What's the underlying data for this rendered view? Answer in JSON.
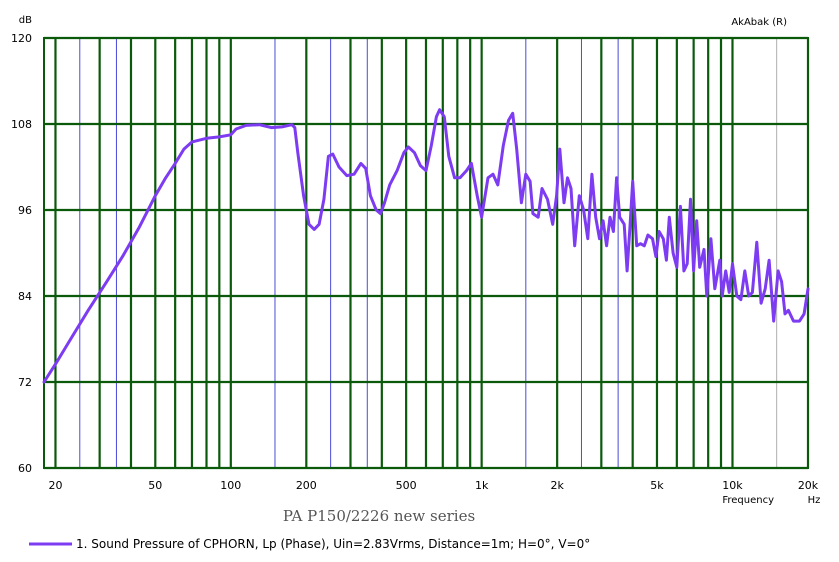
{
  "chart_data": {
    "type": "line",
    "title": "PA P150/2226 new series",
    "brand": "AkAbak (R)",
    "ylabel": "dB",
    "xlabel_line1": "Frequency",
    "xlabel_line2": "Hz",
    "x_scale": "log",
    "xlim": [
      18,
      20000
    ],
    "ylim": [
      60,
      120
    ],
    "y_ticks": [
      {
        "value": 60,
        "label": "60"
      },
      {
        "value": 72,
        "label": "72"
      },
      {
        "value": 84,
        "label": "84"
      },
      {
        "value": 96,
        "label": "96"
      },
      {
        "value": 108,
        "label": "108"
      },
      {
        "value": 120,
        "label": "120"
      }
    ],
    "x_ticks": [
      {
        "value": 20,
        "label": "20"
      },
      {
        "value": 50,
        "label": "50"
      },
      {
        "value": 100,
        "label": "100"
      },
      {
        "value": 200,
        "label": "200"
      },
      {
        "value": 500,
        "label": "500"
      },
      {
        "value": 1000,
        "label": "1k"
      },
      {
        "value": 2000,
        "label": "2k"
      },
      {
        "value": 5000,
        "label": "5k"
      },
      {
        "value": 10000,
        "label": "10k"
      },
      {
        "value": 20000,
        "label": "20k"
      }
    ],
    "colors": {
      "line": "#7d3cf2",
      "major_grid": "#0b5a0b",
      "minor_grid": "#4a4ad8",
      "minor_grid_light": "#b0b0b0"
    },
    "series": [
      {
        "name": "1. Sound Pressure of CPHORN, Lp (Phase), Uin=2.83Vrms, Distance=1m; H=0°, V=0°",
        "points": [
          [
            18,
            72
          ],
          [
            20,
            74.5
          ],
          [
            23,
            78
          ],
          [
            27,
            82
          ],
          [
            32,
            86
          ],
          [
            37,
            89.5
          ],
          [
            43,
            93.5
          ],
          [
            50,
            98
          ],
          [
            55,
            100.5
          ],
          [
            60,
            102.5
          ],
          [
            65,
            104.5
          ],
          [
            70,
            105.5
          ],
          [
            80,
            106
          ],
          [
            90,
            106.2
          ],
          [
            100,
            106.5
          ],
          [
            105,
            107.3
          ],
          [
            115,
            107.8
          ],
          [
            130,
            107.9
          ],
          [
            145,
            107.5
          ],
          [
            160,
            107.6
          ],
          [
            175,
            107.9
          ],
          [
            180,
            107.5
          ],
          [
            185,
            104
          ],
          [
            195,
            98
          ],
          [
            205,
            94
          ],
          [
            215,
            93.3
          ],
          [
            225,
            94
          ],
          [
            235,
            97.5
          ],
          [
            245,
            103.5
          ],
          [
            255,
            103.8
          ],
          [
            270,
            102
          ],
          [
            290,
            100.8
          ],
          [
            310,
            101
          ],
          [
            330,
            102.5
          ],
          [
            345,
            101.8
          ],
          [
            360,
            98
          ],
          [
            380,
            96
          ],
          [
            395,
            95.5
          ],
          [
            410,
            97
          ],
          [
            430,
            99.5
          ],
          [
            460,
            101.5
          ],
          [
            490,
            104
          ],
          [
            510,
            104.8
          ],
          [
            540,
            104
          ],
          [
            570,
            102.2
          ],
          [
            600,
            101.5
          ],
          [
            630,
            105
          ],
          [
            660,
            109
          ],
          [
            680,
            110
          ],
          [
            710,
            109
          ],
          [
            740,
            103.5
          ],
          [
            780,
            100.5
          ],
          [
            820,
            100.5
          ],
          [
            870,
            101.5
          ],
          [
            910,
            102.5
          ],
          [
            960,
            98
          ],
          [
            1000,
            95
          ],
          [
            1060,
            100.5
          ],
          [
            1110,
            101
          ],
          [
            1160,
            99.5
          ],
          [
            1220,
            105
          ],
          [
            1280,
            108.5
          ],
          [
            1330,
            109.5
          ],
          [
            1380,
            104.5
          ],
          [
            1440,
            97
          ],
          [
            1500,
            101
          ],
          [
            1560,
            100
          ],
          [
            1600,
            95.5
          ],
          [
            1680,
            95
          ],
          [
            1740,
            99
          ],
          [
            1830,
            97.5
          ],
          [
            1920,
            94
          ],
          [
            1990,
            98
          ],
          [
            2050,
            104.5
          ],
          [
            2130,
            97
          ],
          [
            2200,
            100.5
          ],
          [
            2270,
            99
          ],
          [
            2350,
            91
          ],
          [
            2450,
            98
          ],
          [
            2550,
            96
          ],
          [
            2650,
            92
          ],
          [
            2750,
            101
          ],
          [
            2850,
            95
          ],
          [
            2950,
            92
          ],
          [
            3050,
            94.5
          ],
          [
            3150,
            91
          ],
          [
            3250,
            95
          ],
          [
            3350,
            93
          ],
          [
            3450,
            100.5
          ],
          [
            3550,
            95
          ],
          [
            3700,
            94
          ],
          [
            3800,
            87.5
          ],
          [
            3900,
            93.5
          ],
          [
            4000,
            100
          ],
          [
            4150,
            91
          ],
          [
            4300,
            91.3
          ],
          [
            4450,
            91
          ],
          [
            4600,
            92.5
          ],
          [
            4800,
            92
          ],
          [
            4950,
            89.5
          ],
          [
            5100,
            93
          ],
          [
            5300,
            92
          ],
          [
            5450,
            89
          ],
          [
            5600,
            95
          ],
          [
            5800,
            90
          ],
          [
            6000,
            88
          ],
          [
            6200,
            96.5
          ],
          [
            6400,
            87.5
          ],
          [
            6600,
            88.5
          ],
          [
            6800,
            97.5
          ],
          [
            7000,
            87.5
          ],
          [
            7200,
            94.5
          ],
          [
            7400,
            88
          ],
          [
            7700,
            90.5
          ],
          [
            7900,
            84
          ],
          [
            8200,
            92
          ],
          [
            8500,
            85
          ],
          [
            8900,
            89
          ],
          [
            9100,
            84
          ],
          [
            9400,
            87.5
          ],
          [
            9700,
            84.5
          ],
          [
            10000,
            88.5
          ],
          [
            10400,
            84
          ],
          [
            10800,
            83.5
          ],
          [
            11200,
            87.5
          ],
          [
            11600,
            84
          ],
          [
            12000,
            84.5
          ],
          [
            12500,
            91.5
          ],
          [
            13000,
            83
          ],
          [
            13500,
            85
          ],
          [
            14000,
            89
          ],
          [
            14600,
            80.5
          ],
          [
            15200,
            87.5
          ],
          [
            15700,
            86
          ],
          [
            16200,
            81.5
          ],
          [
            16700,
            82
          ],
          [
            17500,
            80.5
          ],
          [
            18500,
            80.5
          ],
          [
            19300,
            81.5
          ],
          [
            20000,
            85
          ]
        ]
      }
    ]
  }
}
